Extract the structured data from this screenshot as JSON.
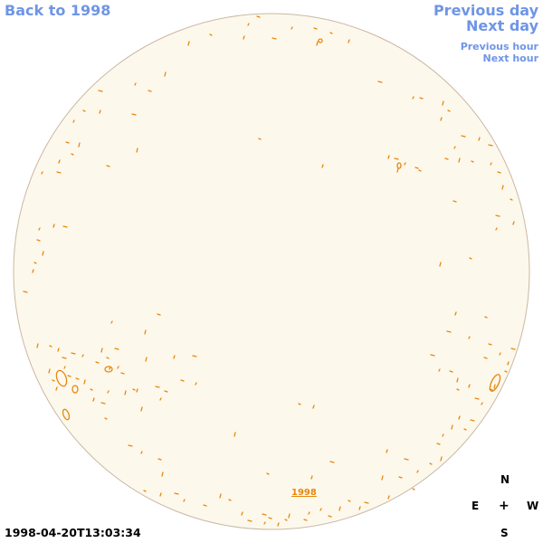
{
  "nav": {
    "back_label": "Back to 1998",
    "previous_day_label": "Previous day",
    "next_day_label": "Next day",
    "previous_hour_label": "Previous hour",
    "next_hour_label": "Next hour"
  },
  "disk": {
    "fill_color": "#fdf8ec",
    "limb_color": "#c9b8a6",
    "contour_color": "#e8870b",
    "year_link_label": "1998"
  },
  "compass": {
    "north": "N",
    "east": "E",
    "center": "+",
    "west": "W",
    "south": "S"
  },
  "timestamp": "1998-04-20T13:03:34",
  "colors": {
    "link": "#6f95e6",
    "text": "#000000"
  }
}
